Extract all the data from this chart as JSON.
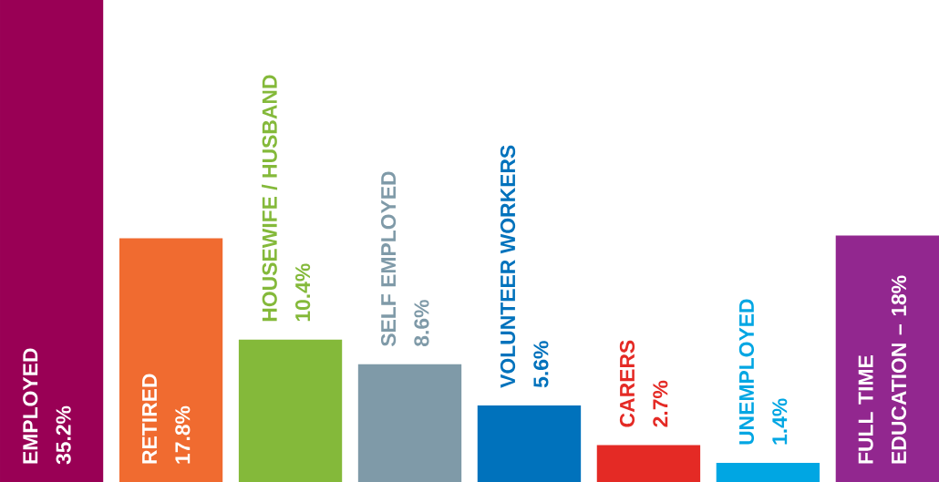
{
  "chart_data": {
    "type": "bar",
    "categories": [
      "EMPLOYED",
      "RETIRED",
      "HOUSEWIFE / HUSBAND",
      "SELF EMPLOYED",
      "VOLUNTEER WORKERS",
      "CARERS",
      "UNEMPLOYED",
      "FULL TIME EDUCATION – 18%"
    ],
    "values": [
      35.2,
      17.8,
      10.4,
      8.6,
      5.6,
      2.7,
      1.4,
      18
    ],
    "value_labels": [
      "35.2%",
      "17.8%",
      "10.4%",
      "8.6%",
      "5.6%",
      "2.7%",
      "1.4%",
      null
    ],
    "colors": [
      "#990055",
      "#f06b30",
      "#84b93a",
      "#7f9aa8",
      "#0072bc",
      "#e42a25",
      "#00a6e3",
      "#92278f"
    ]
  }
}
